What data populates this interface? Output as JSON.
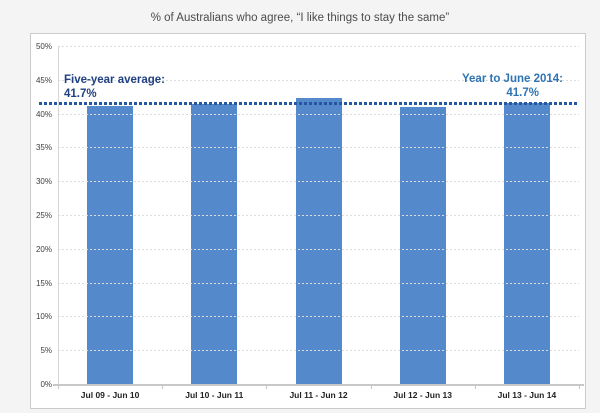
{
  "title": "% of Australians who agree, “I like things to stay the same”",
  "annotations": {
    "average_label": "Five-year average:",
    "average_value": "41.7%",
    "latest_label": "Year to June 2014:",
    "latest_value": "41.7%"
  },
  "colors": {
    "background": "#F4F4F4",
    "panel_border": "#CBCBCB",
    "gridline": "#DCDCDC",
    "bar": "#5489CB",
    "average_line": "#2456A4",
    "average_text": "#1F4182",
    "latest_text": "#2E74B5"
  },
  "chart_data": {
    "type": "bar",
    "title": "% of Australians who agree, “I like things to stay the same”",
    "categories": [
      "Jul 09 - Jun 10",
      "Jul 10 - Jun 11",
      "Jul 11 - Jun 12",
      "Jul 12 - Jun 13",
      "Jul 13 - Jun 14"
    ],
    "values": [
      41.3,
      41.6,
      42.4,
      41.1,
      41.7
    ],
    "five_year_average": 41.7,
    "latest_value": 41.7,
    "xlabel": "",
    "ylabel": "",
    "ylim": [
      0,
      50
    ],
    "ytick_step": 5,
    "ytick_labels": [
      "0%",
      "5%",
      "10%",
      "15%",
      "20%",
      "25%",
      "30%",
      "35%",
      "40%",
      "45%",
      "50%"
    ],
    "grid": "horizontal-dotted",
    "legend": "none"
  }
}
